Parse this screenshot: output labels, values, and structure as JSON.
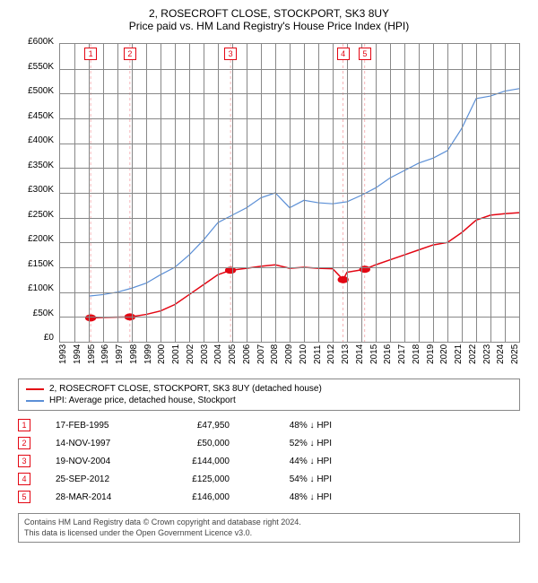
{
  "title": "2, ROSECROFT CLOSE, STOCKPORT, SK3 8UY",
  "subtitle": "Price paid vs. HM Land Registry's House Price Index (HPI)",
  "chart": {
    "type": "line",
    "background_color": "#ffffff",
    "grid_color": "#888888",
    "border_color": "#888888",
    "xlim": [
      1993,
      2025
    ],
    "ylim": [
      0,
      600000
    ],
    "ytick_step": 50000,
    "yticks_labels": [
      "£600K",
      "£550K",
      "£500K",
      "£450K",
      "£400K",
      "£350K",
      "£300K",
      "£250K",
      "£200K",
      "£150K",
      "£100K",
      "£50K",
      "£0"
    ],
    "xticks": [
      1993,
      1994,
      1995,
      1996,
      1997,
      1998,
      1999,
      2000,
      2001,
      2002,
      2003,
      2004,
      2005,
      2006,
      2007,
      2008,
      2009,
      2010,
      2011,
      2012,
      2013,
      2014,
      2015,
      2016,
      2017,
      2018,
      2019,
      2020,
      2021,
      2022,
      2023,
      2024,
      2025
    ],
    "series": [
      {
        "name": "2, ROSECROFT CLOSE, STOCKPORT, SK3 8UY (detached house)",
        "color": "#e30613",
        "line_width": 1.5,
        "points": [
          [
            1995.13,
            47950
          ],
          [
            1996,
            49000
          ],
          [
            1997.87,
            50000
          ],
          [
            1999,
            55000
          ],
          [
            2000,
            62000
          ],
          [
            2001,
            75000
          ],
          [
            2002,
            95000
          ],
          [
            2003,
            115000
          ],
          [
            2004,
            135000
          ],
          [
            2004.88,
            144000
          ],
          [
            2006,
            148000
          ],
          [
            2007,
            152000
          ],
          [
            2008,
            155000
          ],
          [
            2009,
            148000
          ],
          [
            2010,
            150000
          ],
          [
            2011,
            148000
          ],
          [
            2012,
            147000
          ],
          [
            2012.73,
            125000
          ],
          [
            2013,
            140000
          ],
          [
            2014.24,
            146000
          ],
          [
            2015,
            155000
          ],
          [
            2016,
            165000
          ],
          [
            2017,
            175000
          ],
          [
            2018,
            185000
          ],
          [
            2019,
            195000
          ],
          [
            2020,
            200000
          ],
          [
            2021,
            220000
          ],
          [
            2022,
            245000
          ],
          [
            2023,
            255000
          ],
          [
            2024,
            258000
          ],
          [
            2025,
            260000
          ]
        ],
        "dots": [
          [
            1995.13,
            47950
          ],
          [
            1997.87,
            50000
          ],
          [
            2004.88,
            144000
          ],
          [
            2012.73,
            125000
          ],
          [
            2014.24,
            146000
          ]
        ]
      },
      {
        "name": "HPI: Average price, detached house, Stockport",
        "color": "#5b8fd6",
        "line_width": 1.2,
        "points": [
          [
            1995,
            92000
          ],
          [
            1996,
            95000
          ],
          [
            1997,
            100000
          ],
          [
            1998,
            108000
          ],
          [
            1999,
            118000
          ],
          [
            2000,
            135000
          ],
          [
            2001,
            150000
          ],
          [
            2002,
            175000
          ],
          [
            2003,
            205000
          ],
          [
            2004,
            240000
          ],
          [
            2005,
            255000
          ],
          [
            2006,
            270000
          ],
          [
            2007,
            290000
          ],
          [
            2008,
            300000
          ],
          [
            2009,
            270000
          ],
          [
            2010,
            285000
          ],
          [
            2011,
            280000
          ],
          [
            2012,
            278000
          ],
          [
            2013,
            282000
          ],
          [
            2014,
            295000
          ],
          [
            2015,
            310000
          ],
          [
            2016,
            330000
          ],
          [
            2017,
            345000
          ],
          [
            2018,
            360000
          ],
          [
            2019,
            370000
          ],
          [
            2020,
            385000
          ],
          [
            2021,
            430000
          ],
          [
            2022,
            490000
          ],
          [
            2023,
            495000
          ],
          [
            2024,
            505000
          ],
          [
            2025,
            510000
          ]
        ]
      }
    ],
    "vertical_markers": [
      {
        "n": "1",
        "x": 1995.13,
        "color": "#e30613"
      },
      {
        "n": "2",
        "x": 1997.87,
        "color": "#e30613"
      },
      {
        "n": "3",
        "x": 2004.88,
        "color": "#e30613"
      },
      {
        "n": "4",
        "x": 2012.73,
        "color": "#e30613"
      },
      {
        "n": "5",
        "x": 2014.24,
        "color": "#e30613"
      }
    ]
  },
  "legend": {
    "items": [
      {
        "label": "2, ROSECROFT CLOSE, STOCKPORT, SK3 8UY (detached house)",
        "color": "#e30613"
      },
      {
        "label": "HPI: Average price, detached house, Stockport",
        "color": "#5b8fd6"
      }
    ]
  },
  "transactions": [
    {
      "n": "1",
      "date": "17-FEB-1995",
      "price": "£47,950",
      "pct": "48% ↓ HPI",
      "color": "#e30613"
    },
    {
      "n": "2",
      "date": "14-NOV-1997",
      "price": "£50,000",
      "pct": "52% ↓ HPI",
      "color": "#e30613"
    },
    {
      "n": "3",
      "date": "19-NOV-2004",
      "price": "£144,000",
      "pct": "44% ↓ HPI",
      "color": "#e30613"
    },
    {
      "n": "4",
      "date": "25-SEP-2012",
      "price": "£125,000",
      "pct": "54% ↓ HPI",
      "color": "#e30613"
    },
    {
      "n": "5",
      "date": "28-MAR-2014",
      "price": "£146,000",
      "pct": "48% ↓ HPI",
      "color": "#e30613"
    }
  ],
  "footer": {
    "line1": "Contains HM Land Registry data © Crown copyright and database right 2024.",
    "line2": "This data is licensed under the Open Government Licence v3.0."
  }
}
